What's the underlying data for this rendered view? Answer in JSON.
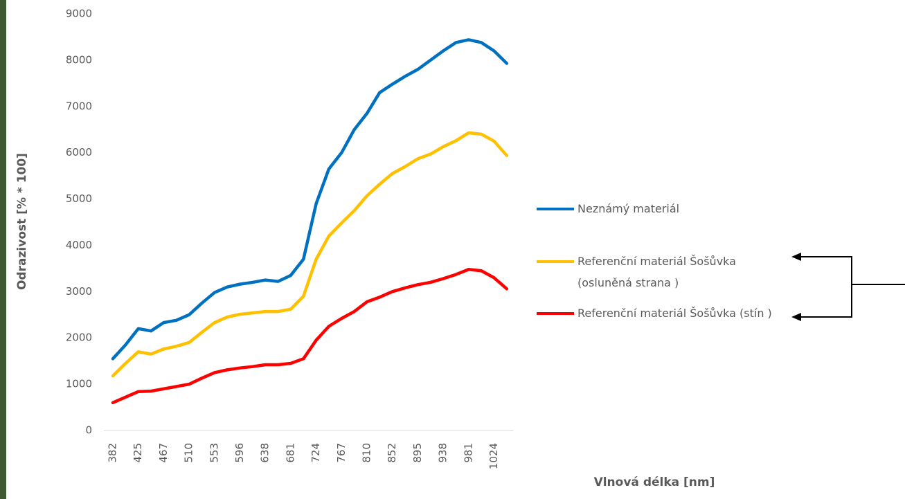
{
  "chart_data": {
    "type": "line",
    "x_label": "Vlnová délka [nm]",
    "y_label": "Odrazivost [% * 100]",
    "categories": [
      "382",
      null,
      "425",
      null,
      "467",
      null,
      "510",
      null,
      "553",
      null,
      "596",
      null,
      "638",
      null,
      "681",
      null,
      "724",
      null,
      "767",
      null,
      "810",
      null,
      "852",
      null,
      "895",
      null,
      "938",
      null,
      "981",
      null,
      "1024",
      null
    ],
    "series": [
      {
        "name": "Neznámý materiál",
        "color": "#0070c0",
        "values": [
          1550,
          1850,
          2200,
          2150,
          2330,
          2380,
          2500,
          2750,
          2980,
          3100,
          3160,
          3200,
          3250,
          3220,
          3350,
          3700,
          4900,
          5650,
          6000,
          6500,
          6850,
          7300,
          7480,
          7650,
          7800,
          8000,
          8200,
          8380,
          8440,
          8380,
          8200,
          7930
        ]
      },
      {
        "name": "Referenční materiál Šošůvka (osluněná strana )",
        "color": "#ffc000",
        "values": [
          1180,
          1450,
          1700,
          1650,
          1760,
          1820,
          1900,
          2120,
          2330,
          2450,
          2510,
          2540,
          2570,
          2570,
          2620,
          2900,
          3700,
          4200,
          4480,
          4750,
          5070,
          5320,
          5550,
          5700,
          5870,
          5970,
          6130,
          6260,
          6430,
          6400,
          6250,
          5940
        ]
      },
      {
        "name": "Referenční materiál Šošůvka (stín )",
        "color": "#ff0000",
        "values": [
          600,
          720,
          840,
          850,
          900,
          950,
          1000,
          1130,
          1250,
          1310,
          1350,
          1380,
          1420,
          1420,
          1450,
          1550,
          1950,
          2250,
          2420,
          2570,
          2780,
          2880,
          3000,
          3080,
          3150,
          3200,
          3280,
          3370,
          3480,
          3450,
          3300,
          3060
        ]
      }
    ],
    "ylim": [
      0,
      9000
    ],
    "yticks": [
      0,
      1000,
      2000,
      3000,
      4000,
      5000,
      6000,
      7000,
      8000,
      9000
    ],
    "grid": false,
    "legend": "right"
  }
}
